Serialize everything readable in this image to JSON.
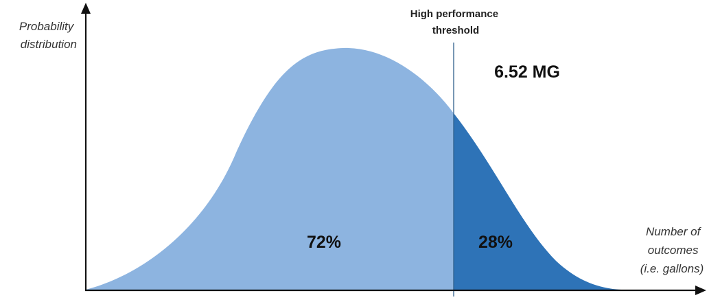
{
  "y_axis_label": [
    "Probability",
    "distribution"
  ],
  "x_axis_label": [
    "Number of",
    "outcomes",
    "(i.e. gallons)"
  ],
  "threshold_label": [
    "High performance",
    "threshold"
  ],
  "threshold_value": "6.52 MG",
  "regions": [
    {
      "label": "72%",
      "color": "#8db4e0"
    },
    {
      "label": "28%",
      "color": "#2e73b7"
    }
  ],
  "colors": {
    "axis": "#111111",
    "threshold_line": "#2e5f8c"
  }
}
